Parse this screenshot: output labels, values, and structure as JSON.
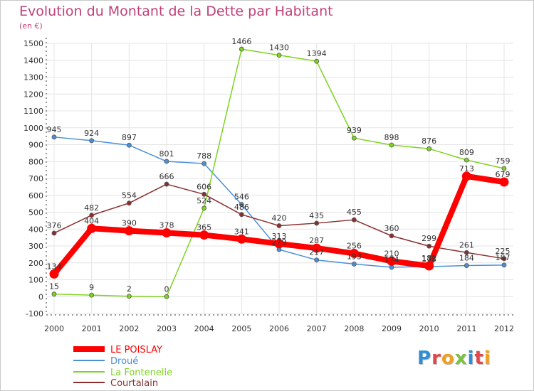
{
  "title": "Evolution du Montant de la Dette par Habitant",
  "unit": "(en €)",
  "logo": "Proxiti",
  "chart_data": {
    "type": "line",
    "title": "Evolution du Montant de la Dette par Habitant",
    "ylabel": "(en €)",
    "xlabel": "",
    "ylim": [
      -100,
      1500
    ],
    "yticks": [
      "-100",
      "0",
      "100",
      "200",
      "300",
      "400",
      "500",
      "600",
      "700",
      "800",
      "900",
      "1000",
      "1100",
      "1200",
      "1300",
      "1400",
      "1500"
    ],
    "categories": [
      "2000",
      "2001",
      "2002",
      "2003",
      "2004",
      "2005",
      "2006",
      "2007",
      "2008",
      "2009",
      "2010",
      "2011",
      "2012"
    ],
    "grid": true,
    "series": [
      {
        "name": "LE POISLAY",
        "color": "#ff0000",
        "values": [
          134,
          404,
          390,
          378,
          365,
          341,
          313,
          287,
          256,
          210,
          182,
          713,
          679
        ],
        "labels": [
          "134",
          "404",
          "390",
          "378",
          "365",
          "341",
          "313",
          "287",
          "256",
          "210",
          "182",
          "713",
          "679"
        ]
      },
      {
        "name": "Droué",
        "color": "#4a90d9",
        "values": [
          945,
          924,
          897,
          801,
          788,
          546,
          279,
          217,
          193,
          174,
          178,
          184,
          187
        ],
        "labels": [
          "945",
          "924",
          "897",
          "801",
          "788",
          "546",
          "279",
          "217",
          "193",
          "174",
          "178",
          "184",
          "187"
        ]
      },
      {
        "name": "La Fontenelle",
        "color": "#7ed321",
        "values": [
          15,
          9,
          2,
          0,
          524,
          1466,
          1430,
          1394,
          939,
          898,
          876,
          809,
          759
        ],
        "labels": [
          "15",
          "9",
          "2",
          "0",
          "524",
          "1466",
          "1430",
          "1394",
          "939",
          "898",
          "876",
          "809",
          "759"
        ]
      },
      {
        "name": "Courtalain",
        "color": "#8b2e2e",
        "values": [
          376,
          482,
          554,
          666,
          606,
          486,
          420,
          435,
          455,
          360,
          299,
          261,
          225
        ],
        "labels": [
          "376",
          "482",
          "554",
          "666",
          "606",
          "486",
          "420",
          "435",
          "455",
          "360",
          "299",
          "261",
          "225"
        ]
      }
    ]
  }
}
